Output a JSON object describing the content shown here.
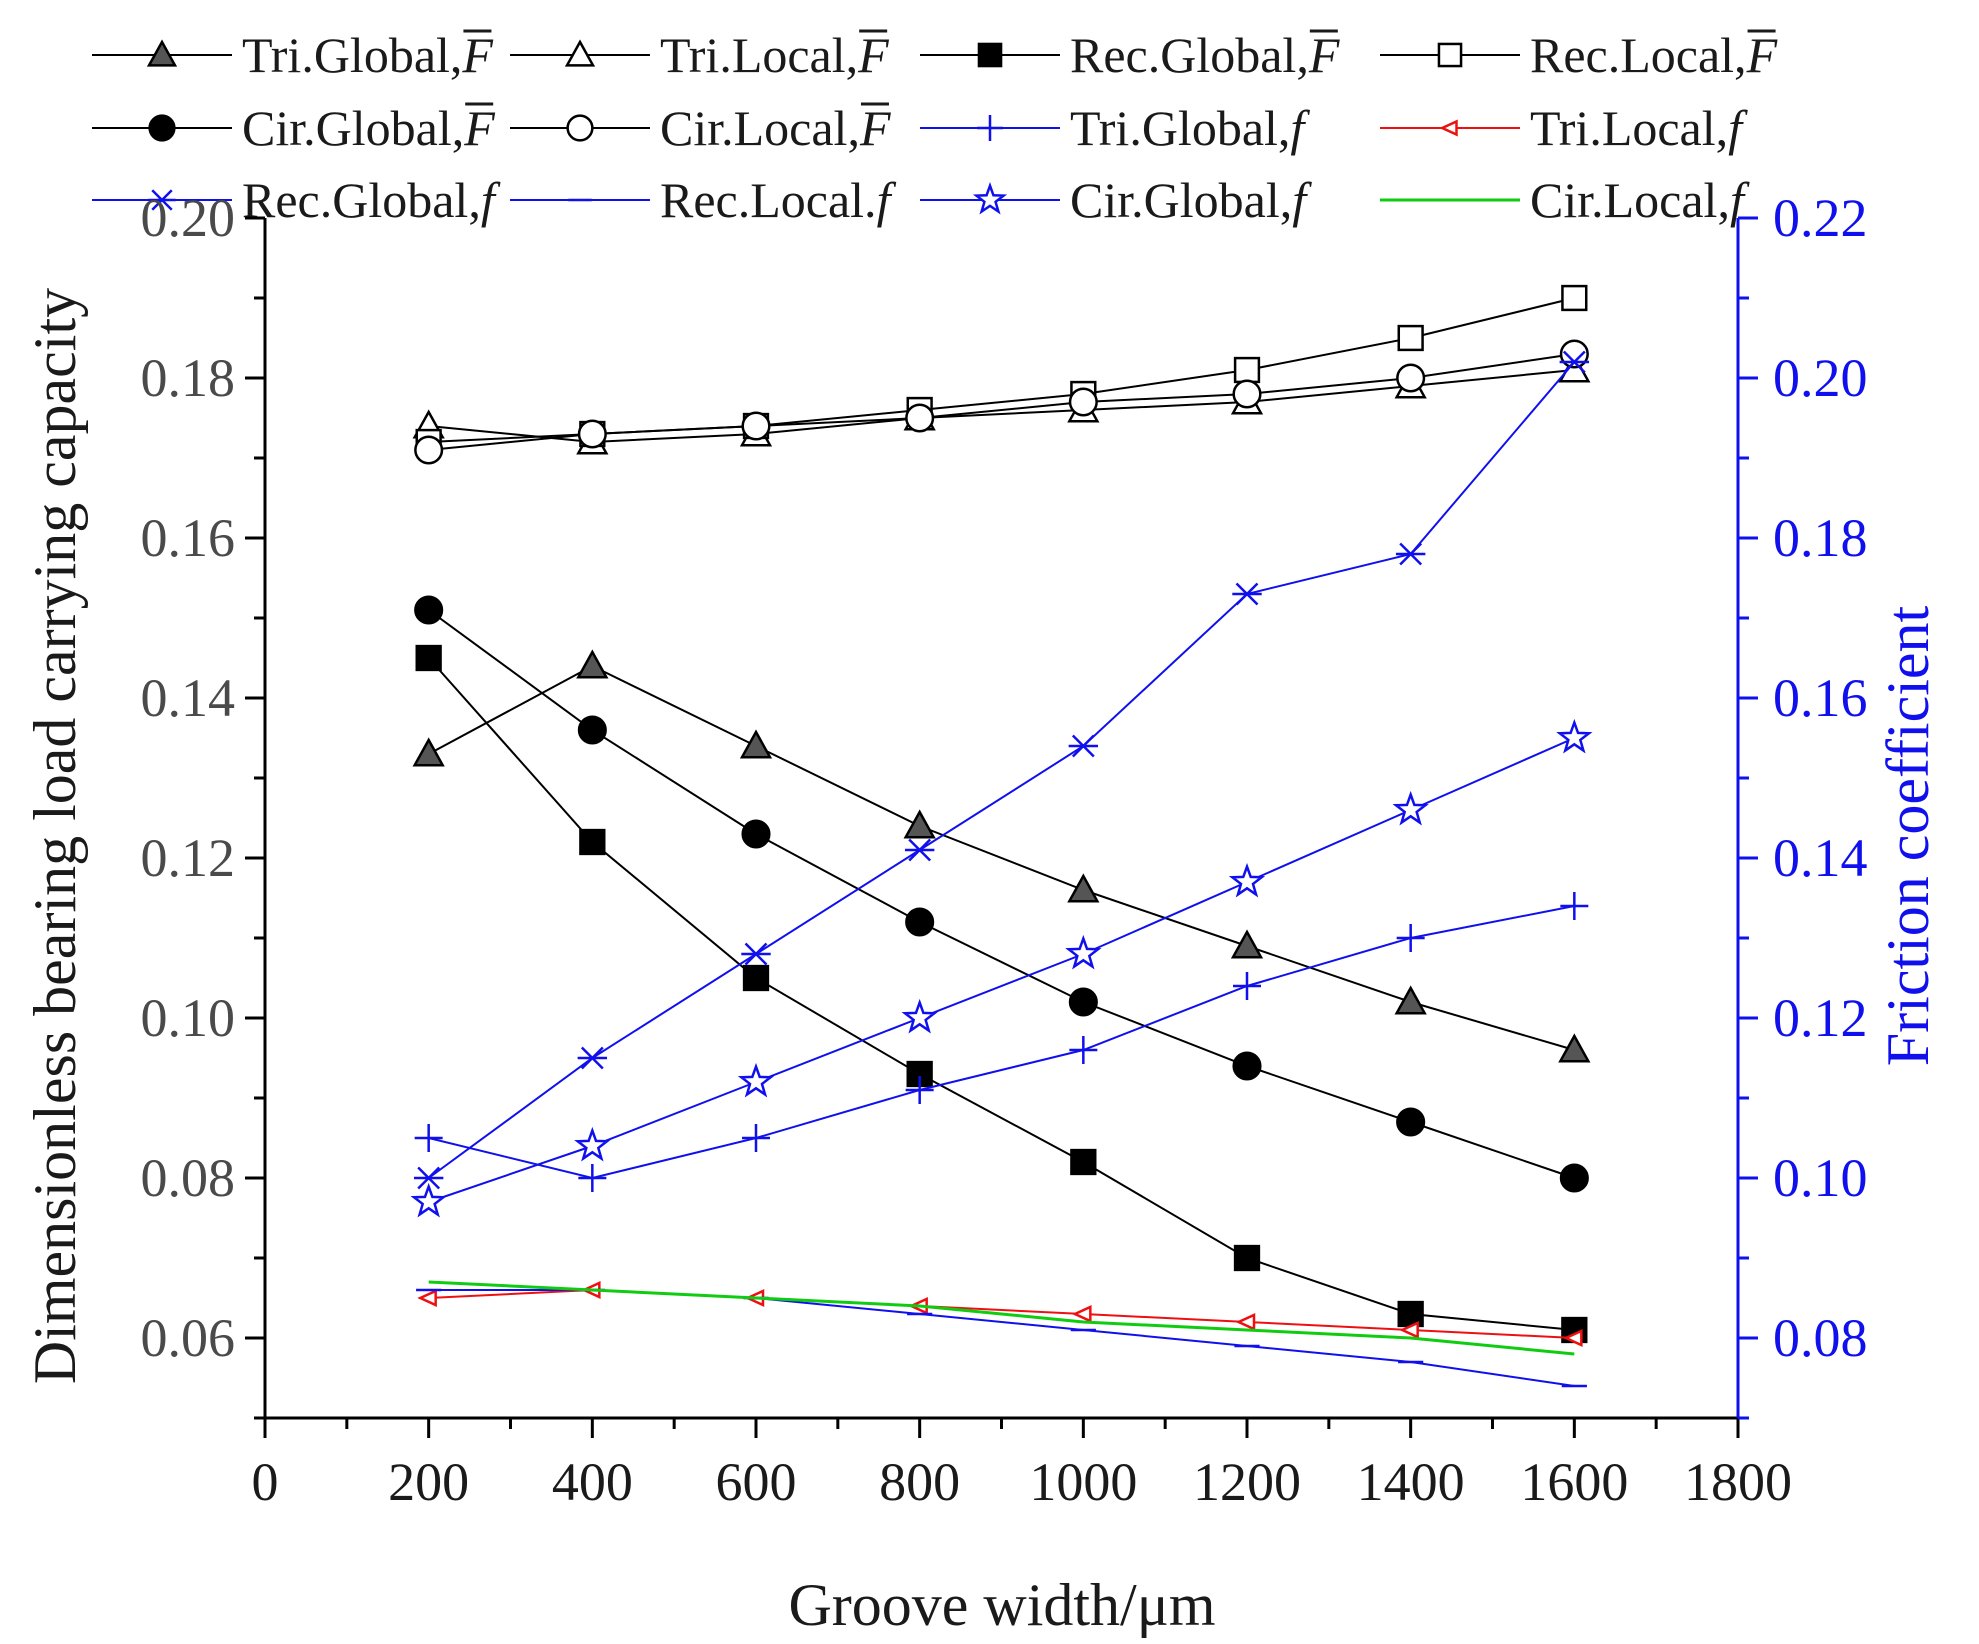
{
  "chart_data": {
    "type": "line",
    "xlabel": "Groove width/μm",
    "ylabel_left": "Dimensionless bearing load carrying capacity",
    "ylabel_right": "Friction coefficient",
    "xlim": [
      0,
      1800
    ],
    "ylim_left": [
      0.05,
      0.2
    ],
    "ylim_right": [
      0.07,
      0.22
    ],
    "x_ticks": [
      "0",
      "200",
      "400",
      "600",
      "800",
      "1000",
      "1200",
      "1400",
      "1600",
      "1800"
    ],
    "y_left_ticks": [
      "0.06",
      "0.08",
      "0.10",
      "0.12",
      "0.14",
      "0.16",
      "0.18",
      "0.20"
    ],
    "y_right_ticks": [
      "0.08",
      "0.10",
      "0.12",
      "0.14",
      "0.16",
      "0.18",
      "0.20",
      "0.22"
    ],
    "x": [
      200,
      400,
      600,
      800,
      1000,
      1200,
      1400,
      1600
    ],
    "series": [
      {
        "name": "Tri.Global,",
        "sym": "F",
        "axis": "left",
        "color": "#000000",
        "marker": "triangle-filled",
        "values": [
          0.133,
          0.144,
          0.134,
          0.124,
          0.116,
          0.109,
          0.102,
          0.096
        ]
      },
      {
        "name": "Tri.Local,",
        "sym": "F",
        "axis": "left",
        "color": "#000000",
        "marker": "triangle-open",
        "values": [
          0.174,
          0.172,
          0.173,
          0.175,
          0.176,
          0.177,
          0.179,
          0.181
        ]
      },
      {
        "name": "Rec.Global,",
        "sym": "F",
        "axis": "left",
        "color": "#000000",
        "marker": "square-filled",
        "values": [
          0.145,
          0.122,
          0.105,
          0.093,
          0.082,
          0.07,
          0.063,
          0.061
        ]
      },
      {
        "name": "Rec.Local,",
        "sym": "F",
        "axis": "left",
        "color": "#000000",
        "marker": "square-open",
        "values": [
          0.172,
          0.173,
          0.174,
          0.176,
          0.178,
          0.181,
          0.185,
          0.19
        ]
      },
      {
        "name": "Cir.Global,",
        "sym": "F",
        "axis": "left",
        "color": "#000000",
        "marker": "circle-filled",
        "values": [
          0.151,
          0.136,
          0.123,
          0.112,
          0.102,
          0.094,
          0.087,
          0.08
        ]
      },
      {
        "name": "Cir.Local,",
        "sym": "F",
        "axis": "left",
        "color": "#000000",
        "marker": "circle-open",
        "values": [
          0.171,
          0.173,
          0.174,
          0.175,
          0.177,
          0.178,
          0.18,
          0.183
        ]
      },
      {
        "name": "Tri.Global,",
        "sym": "f",
        "axis": "right",
        "color": "#1010ee",
        "marker": "plus",
        "values": [
          0.105,
          0.1,
          0.105,
          0.111,
          0.116,
          0.124,
          0.13,
          0.134
        ]
      },
      {
        "name": "Tri.Local,",
        "sym": "f",
        "axis": "right",
        "color": "#ee1010",
        "marker": "triangle-left-open",
        "values": [
          0.085,
          0.086,
          0.085,
          0.084,
          0.083,
          0.082,
          0.081,
          0.08
        ]
      },
      {
        "name": "Rec.Global,",
        "sym": "f",
        "axis": "right",
        "color": "#1010ee",
        "marker": "star-x",
        "values": [
          0.1,
          0.115,
          0.128,
          0.141,
          0.154,
          0.173,
          0.178,
          0.202
        ]
      },
      {
        "name": "Rec.Local.",
        "sym": "f",
        "axis": "right",
        "color": "#1010ee",
        "marker": "dash",
        "values": [
          0.086,
          0.086,
          0.085,
          0.083,
          0.081,
          0.079,
          0.077,
          0.074
        ]
      },
      {
        "name": "Cir.Global,",
        "sym": "f",
        "axis": "right",
        "color": "#1010ee",
        "marker": "star-open",
        "values": [
          0.097,
          0.104,
          0.112,
          0.12,
          0.128,
          0.137,
          0.146,
          0.155
        ]
      },
      {
        "name": "Cir.Local,",
        "sym": "f",
        "axis": "right",
        "color": "#10cc10",
        "marker": "none",
        "values": [
          0.087,
          0.086,
          0.085,
          0.084,
          0.082,
          0.081,
          0.08,
          0.078
        ]
      }
    ]
  }
}
